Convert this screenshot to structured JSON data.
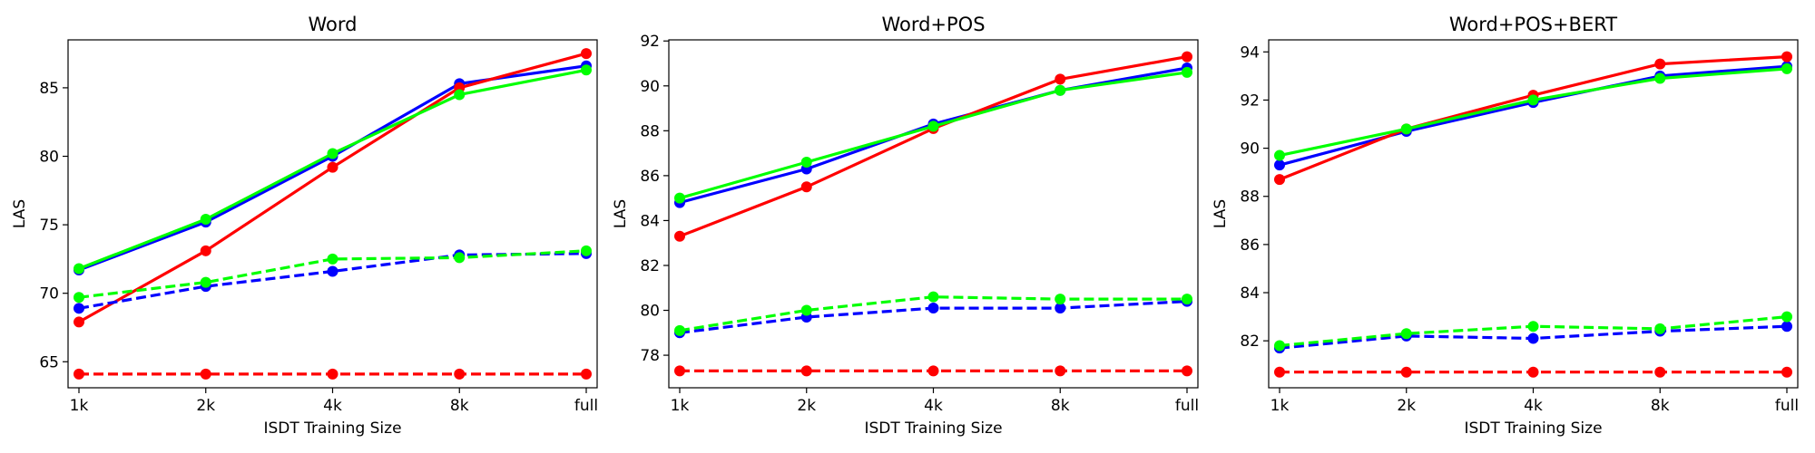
{
  "chart_data": [
    {
      "type": "line",
      "title": "Word",
      "xlabel": "ISDT Training Size",
      "ylabel": "LAS",
      "categories": [
        "1k",
        "2k",
        "4k",
        "8k",
        "full"
      ],
      "ylim": [
        63.1,
        88.5
      ],
      "yticks": [
        65,
        70,
        75,
        80,
        85
      ],
      "grid": false,
      "series": [
        {
          "color": "#0000ff",
          "linestyle": "solid",
          "values": [
            71.7,
            75.2,
            80.0,
            85.3,
            86.6
          ]
        },
        {
          "color": "#ff0000",
          "linestyle": "solid",
          "values": [
            67.9,
            73.1,
            79.2,
            85.0,
            87.5
          ]
        },
        {
          "color": "#00ff00",
          "linestyle": "solid",
          "values": [
            71.8,
            75.4,
            80.2,
            84.5,
            86.3
          ]
        },
        {
          "color": "#0000ff",
          "linestyle": "dashed",
          "values": [
            68.9,
            70.5,
            71.6,
            72.8,
            72.9
          ]
        },
        {
          "color": "#00ff00",
          "linestyle": "dashed",
          "values": [
            69.7,
            70.8,
            72.5,
            72.6,
            73.1
          ]
        },
        {
          "color": "#ff0000",
          "linestyle": "dashed",
          "values": [
            64.1,
            64.1,
            64.1,
            64.1,
            64.1
          ]
        }
      ]
    },
    {
      "type": "line",
      "title": "Word+POS",
      "xlabel": "ISDT Training Size",
      "ylabel": "LAS",
      "categories": [
        "1k",
        "2k",
        "4k",
        "8k",
        "full"
      ],
      "ylim": [
        76.55,
        92.05
      ],
      "yticks": [
        78,
        80,
        82,
        84,
        86,
        88,
        90,
        92
      ],
      "grid": false,
      "series": [
        {
          "color": "#0000ff",
          "linestyle": "solid",
          "values": [
            84.8,
            86.3,
            88.3,
            89.8,
            90.8
          ]
        },
        {
          "color": "#ff0000",
          "linestyle": "solid",
          "values": [
            83.3,
            85.5,
            88.1,
            90.3,
            91.3
          ]
        },
        {
          "color": "#00ff00",
          "linestyle": "solid",
          "values": [
            85.0,
            86.6,
            88.2,
            89.8,
            90.6
          ]
        },
        {
          "color": "#0000ff",
          "linestyle": "dashed",
          "values": [
            79.0,
            79.7,
            80.1,
            80.1,
            80.4
          ]
        },
        {
          "color": "#00ff00",
          "linestyle": "dashed",
          "values": [
            79.1,
            80.0,
            80.6,
            80.5,
            80.5
          ]
        },
        {
          "color": "#ff0000",
          "linestyle": "dashed",
          "values": [
            77.3,
            77.3,
            77.3,
            77.3,
            77.3
          ]
        }
      ]
    },
    {
      "type": "line",
      "title": "Word+POS+BERT",
      "xlabel": "ISDT Training Size",
      "ylabel": "LAS",
      "categories": [
        "1k",
        "2k",
        "4k",
        "8k",
        "full"
      ],
      "ylim": [
        80.05,
        94.5
      ],
      "yticks": [
        82,
        84,
        86,
        88,
        90,
        92,
        94
      ],
      "grid": false,
      "series": [
        {
          "color": "#0000ff",
          "linestyle": "solid",
          "values": [
            89.3,
            90.7,
            91.9,
            93.0,
            93.4
          ]
        },
        {
          "color": "#ff0000",
          "linestyle": "solid",
          "values": [
            88.7,
            90.8,
            92.2,
            93.5,
            93.8
          ]
        },
        {
          "color": "#00ff00",
          "linestyle": "solid",
          "values": [
            89.7,
            90.8,
            92.0,
            92.9,
            93.3
          ]
        },
        {
          "color": "#0000ff",
          "linestyle": "dashed",
          "values": [
            81.7,
            82.2,
            82.1,
            82.4,
            82.6
          ]
        },
        {
          "color": "#00ff00",
          "linestyle": "dashed",
          "values": [
            81.8,
            82.3,
            82.6,
            82.5,
            83.0
          ]
        },
        {
          "color": "#ff0000",
          "linestyle": "dashed",
          "values": [
            80.7,
            80.7,
            80.7,
            80.7,
            80.7
          ]
        }
      ]
    }
  ]
}
